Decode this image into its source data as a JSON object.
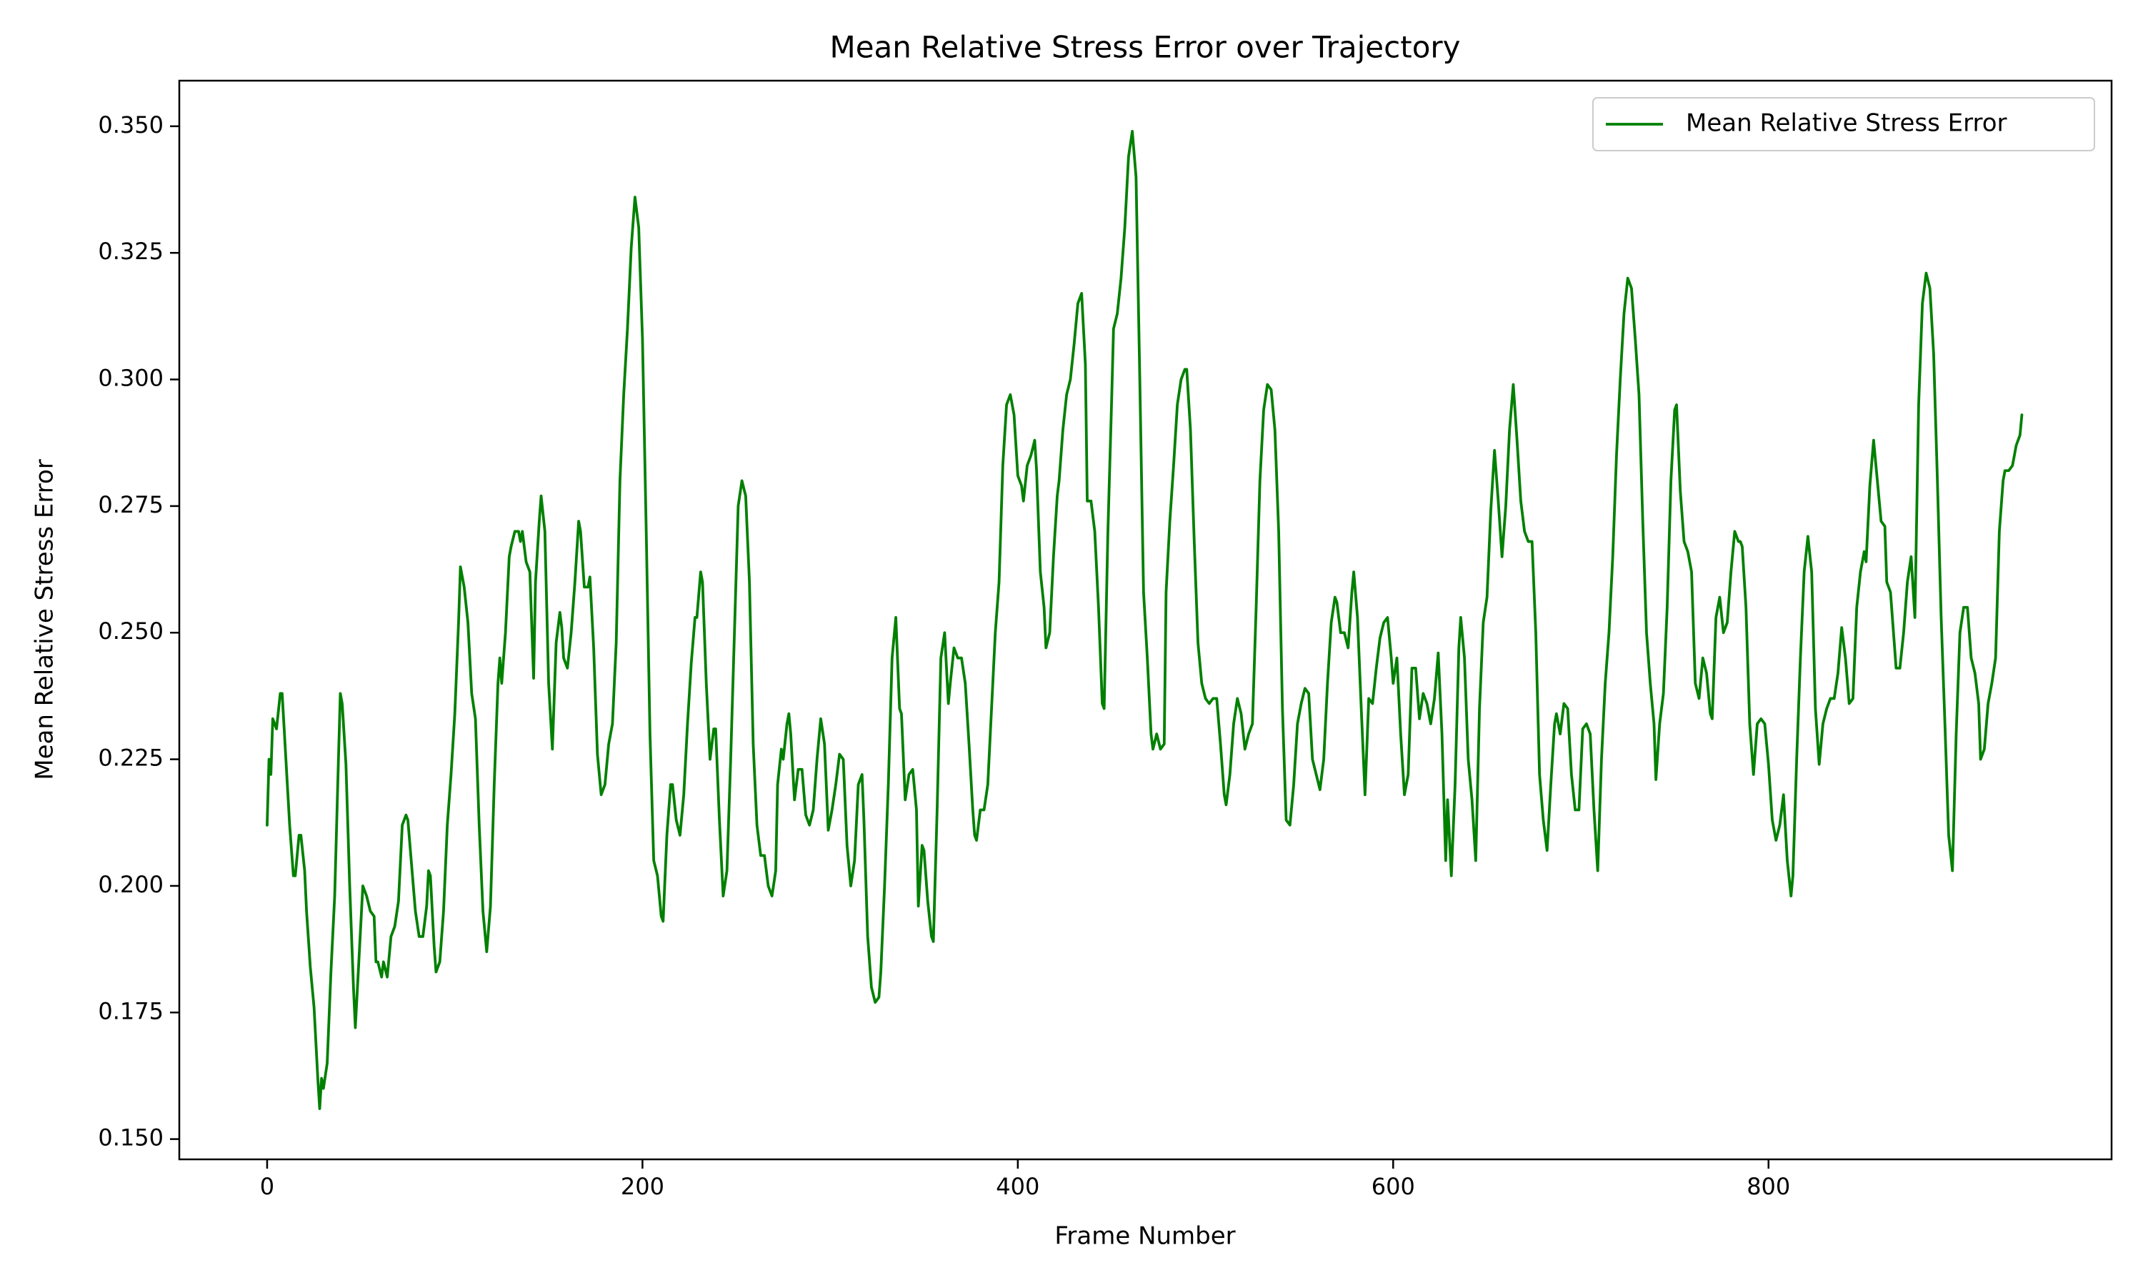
{
  "chart_data": {
    "type": "line",
    "title": "Mean Relative Stress Error over Trajectory",
    "x_label": "Frame Number",
    "y_label": "Mean Relative Stress Error",
    "xlim": [
      -46.8,
      982.8
    ],
    "ylim": [
      0.146,
      0.359
    ],
    "xticks": [
      0,
      200,
      400,
      600,
      800
    ],
    "yticks": [
      {
        "value": 0.15,
        "label": "0.150"
      },
      0.175,
      {
        "value": 0.2,
        "label": "0.200"
      },
      0.225,
      {
        "value": 0.25,
        "label": "0.250"
      },
      0.275,
      {
        "value": 0.3,
        "label": "0.300"
      },
      0.325,
      {
        "value": 0.35,
        "label": "0.350"
      }
    ],
    "grid": false,
    "legend": "upper right",
    "x": [
      0,
      1,
      2,
      3,
      5,
      7,
      8,
      10,
      12,
      14,
      15,
      17,
      18,
      20,
      21,
      23,
      25,
      27,
      28,
      29,
      30,
      32,
      34,
      36,
      38,
      39,
      40,
      42,
      44,
      46,
      47,
      49,
      51,
      53,
      55,
      57,
      58,
      59,
      61,
      62,
      64,
      66,
      68,
      70,
      72,
      74,
      75,
      77,
      79,
      81,
      83,
      85,
      86,
      87,
      89,
      90,
      92,
      94,
      96,
      98,
      100,
      102,
      103,
      105,
      107,
      109,
      111,
      113,
      115,
      117,
      119,
      121,
      123,
      124,
      125,
      127,
      129,
      130,
      132,
      134,
      135,
      136,
      138,
      140,
      142,
      143,
      145,
      146,
      148,
      150,
      152,
      154,
      156,
      157,
      158,
      160,
      162,
      164,
      166,
      167,
      169,
      171,
      172,
      174,
      176,
      178,
      180,
      182,
      184,
      186,
      188,
      190,
      192,
      194,
      196,
      198,
      200,
      202,
      204,
      206,
      208,
      210,
      211,
      213,
      215,
      216,
      218,
      220,
      222,
      224,
      226,
      228,
      229,
      231,
      232,
      234,
      236,
      238,
      239,
      241,
      243,
      245,
      247,
      249,
      251,
      253,
      255,
      257,
      259,
      261,
      263,
      265,
      267,
      269,
      271,
      272,
      274,
      275,
      277,
      278,
      279,
      281,
      283,
      285,
      287,
      289,
      291,
      293,
      295,
      297,
      299,
      301,
      303,
      305,
      307,
      309,
      311,
      313,
      315,
      317,
      318,
      320,
      322,
      324,
      326,
      327,
      329,
      331,
      333,
      335,
      337,
      338,
      340,
      342,
      344,
      346,
      347,
      349,
      350,
      352,
      354,
      355,
      357,
      359,
      361,
      363,
      364,
      366,
      368,
      370,
      372,
      374,
      376,
      377,
      378,
      380,
      382,
      384,
      386,
      388,
      390,
      392,
      394,
      396,
      398,
      400,
      402,
      403,
      405,
      407,
      409,
      410,
      412,
      414,
      415,
      417,
      419,
      421,
      422,
      424,
      426,
      428,
      430,
      432,
      434,
      436,
      437,
      439,
      441,
      443,
      445,
      446,
      448,
      450,
      451,
      453,
      455,
      457,
      459,
      461,
      463,
      465,
      467,
      469,
      471,
      472,
      474,
      476,
      478,
      479,
      481,
      483,
      485,
      487,
      489,
      490,
      492,
      494,
      496,
      498,
      500,
      502,
      504,
      506,
      508,
      510,
      511,
      513,
      515,
      517,
      519,
      521,
      523,
      525,
      527,
      529,
      531,
      533,
      535,
      537,
      539,
      541,
      543,
      545,
      547,
      549,
      551,
      553,
      555,
      557,
      559,
      561,
      563,
      565,
      567,
      569,
      570,
      572,
      574,
      576,
      578,
      579,
      581,
      583,
      585,
      587,
      589,
      591,
      593,
      595,
      597,
      599,
      600,
      602,
      604,
      606,
      608,
      610,
      612,
      614,
      616,
      618,
      620,
      622,
      624,
      626,
      628,
      629,
      631,
      633,
      635,
      636,
      638,
      640,
      642,
      644,
      646,
      648,
      650,
      652,
      654,
      656,
      658,
      660,
      662,
      664,
      666,
      668,
      670,
      672,
      674,
      676,
      678,
      680,
      682,
      684,
      686,
      687,
      689,
      691,
      693,
      695,
      697,
      699,
      701,
      703,
      705,
      707,
      709,
      711,
      713,
      715,
      717,
      719,
      721,
      723,
      725,
      727,
      729,
      731,
      733,
      735,
      737,
      739,
      740,
      742,
      744,
      746,
      748,
      750,
      751,
      753,
      755,
      757,
      759,
      761,
      763,
      765,
      767,
      769,
      770,
      772,
      774,
      776,
      778,
      780,
      782,
      784,
      785,
      786,
      788,
      790,
      792,
      794,
      796,
      798,
      800,
      802,
      804,
      806,
      808,
      810,
      812,
      813,
      815,
      817,
      819,
      821,
      823,
      825,
      827,
      829,
      831,
      833,
      835,
      837,
      839,
      841,
      843,
      845,
      847,
      849,
      851,
      852,
      854,
      856,
      858,
      860,
      862,
      863,
      865,
      867,
      868,
      870,
      872,
      874,
      876,
      878,
      880,
      882,
      884,
      886,
      888,
      890,
      892,
      894,
      896,
      898,
      900,
      902,
      904,
      906,
      908,
      910,
      912,
      913,
      915,
      917,
      919,
      921,
      923,
      925,
      926,
      928,
      930,
      932,
      934,
      935
    ],
    "series": [
      {
        "name": "Mean Relative Stress Error",
        "color": "#008000",
        "values": [
          0.212,
          0.225,
          0.222,
          0.233,
          0.231,
          0.238,
          0.238,
          0.225,
          0.212,
          0.202,
          0.202,
          0.21,
          0.21,
          0.203,
          0.195,
          0.184,
          0.176,
          0.162,
          0.156,
          0.162,
          0.16,
          0.165,
          0.183,
          0.198,
          0.225,
          0.238,
          0.236,
          0.224,
          0.2,
          0.18,
          0.172,
          0.186,
          0.2,
          0.198,
          0.195,
          0.194,
          0.185,
          0.185,
          0.182,
          0.185,
          0.182,
          0.19,
          0.192,
          0.197,
          0.212,
          0.214,
          0.213,
          0.204,
          0.195,
          0.19,
          0.19,
          0.196,
          0.203,
          0.202,
          0.188,
          0.183,
          0.185,
          0.195,
          0.212,
          0.222,
          0.234,
          0.252,
          0.263,
          0.259,
          0.252,
          0.238,
          0.233,
          0.212,
          0.195,
          0.187,
          0.196,
          0.22,
          0.24,
          0.245,
          0.24,
          0.25,
          0.265,
          0.267,
          0.27,
          0.27,
          0.268,
          0.27,
          0.264,
          0.262,
          0.241,
          0.26,
          0.272,
          0.277,
          0.27,
          0.24,
          0.227,
          0.248,
          0.254,
          0.251,
          0.245,
          0.243,
          0.25,
          0.26,
          0.272,
          0.27,
          0.259,
          0.259,
          0.261,
          0.247,
          0.226,
          0.218,
          0.22,
          0.228,
          0.232,
          0.248,
          0.28,
          0.297,
          0.31,
          0.326,
          0.336,
          0.33,
          0.308,
          0.27,
          0.23,
          0.205,
          0.202,
          0.194,
          0.193,
          0.21,
          0.22,
          0.22,
          0.213,
          0.21,
          0.218,
          0.232,
          0.244,
          0.253,
          0.253,
          0.262,
          0.26,
          0.24,
          0.225,
          0.231,
          0.231,
          0.213,
          0.198,
          0.203,
          0.225,
          0.25,
          0.275,
          0.28,
          0.277,
          0.26,
          0.228,
          0.212,
          0.206,
          0.206,
          0.2,
          0.198,
          0.203,
          0.22,
          0.227,
          0.225,
          0.232,
          0.234,
          0.23,
          0.217,
          0.223,
          0.223,
          0.214,
          0.212,
          0.215,
          0.225,
          0.233,
          0.228,
          0.211,
          0.215,
          0.22,
          0.226,
          0.225,
          0.208,
          0.2,
          0.205,
          0.22,
          0.222,
          0.213,
          0.19,
          0.18,
          0.177,
          0.178,
          0.183,
          0.2,
          0.22,
          0.245,
          0.253,
          0.235,
          0.234,
          0.217,
          0.222,
          0.223,
          0.215,
          0.196,
          0.208,
          0.207,
          0.197,
          0.19,
          0.189,
          0.215,
          0.245,
          0.25,
          0.236,
          0.24,
          0.247,
          0.245,
          0.245,
          0.24,
          0.228,
          0.215,
          0.21,
          0.209,
          0.215,
          0.215,
          0.22,
          0.235,
          0.25,
          0.26,
          0.283,
          0.295,
          0.297,
          0.293,
          0.281,
          0.279,
          0.276,
          0.283,
          0.285,
          0.288,
          0.282,
          0.262,
          0.255,
          0.247,
          0.25,
          0.265,
          0.277,
          0.28,
          0.29,
          0.297,
          0.3,
          0.307,
          0.315,
          0.317,
          0.303,
          0.276,
          0.276,
          0.27,
          0.255,
          0.236,
          0.235,
          0.27,
          0.296,
          0.31,
          0.313,
          0.32,
          0.33,
          0.344,
          0.349,
          0.34,
          0.3,
          0.258,
          0.245,
          0.23,
          0.227,
          0.23,
          0.227,
          0.228,
          0.258,
          0.272,
          0.283,
          0.295,
          0.3,
          0.302,
          0.302,
          0.29,
          0.268,
          0.248,
          0.24,
          0.237,
          0.236,
          0.237,
          0.237,
          0.228,
          0.218,
          0.216,
          0.222,
          0.232,
          0.237,
          0.234,
          0.227,
          0.23,
          0.232,
          0.255,
          0.28,
          0.294,
          0.299,
          0.298,
          0.29,
          0.27,
          0.235,
          0.213,
          0.212,
          0.22,
          0.232,
          0.236,
          0.239,
          0.238,
          0.225,
          0.222,
          0.219,
          0.225,
          0.24,
          0.252,
          0.257,
          0.256,
          0.25,
          0.25,
          0.247,
          0.258,
          0.262,
          0.253,
          0.235,
          0.218,
          0.237,
          0.236,
          0.243,
          0.249,
          0.252,
          0.253,
          0.245,
          0.24,
          0.245,
          0.23,
          0.218,
          0.222,
          0.243,
          0.243,
          0.233,
          0.238,
          0.236,
          0.232,
          0.237,
          0.246,
          0.23,
          0.205,
          0.217,
          0.202,
          0.22,
          0.247,
          0.253,
          0.245,
          0.225,
          0.217,
          0.205,
          0.235,
          0.252,
          0.257,
          0.274,
          0.286,
          0.276,
          0.265,
          0.275,
          0.29,
          0.299,
          0.288,
          0.276,
          0.27,
          0.268,
          0.268,
          0.25,
          0.222,
          0.213,
          0.207,
          0.22,
          0.232,
          0.234,
          0.23,
          0.236,
          0.235,
          0.222,
          0.215,
          0.215,
          0.231,
          0.232,
          0.23,
          0.215,
          0.203,
          0.225,
          0.24,
          0.25,
          0.265,
          0.285,
          0.3,
          0.313,
          0.32,
          0.318,
          0.308,
          0.297,
          0.272,
          0.25,
          0.24,
          0.232,
          0.221,
          0.232,
          0.238,
          0.255,
          0.28,
          0.294,
          0.295,
          0.278,
          0.268,
          0.266,
          0.262,
          0.24,
          0.237,
          0.245,
          0.242,
          0.234,
          0.233,
          0.253,
          0.257,
          0.25,
          0.252,
          0.262,
          0.27,
          0.268,
          0.268,
          0.267,
          0.255,
          0.232,
          0.222,
          0.232,
          0.233,
          0.232,
          0.224,
          0.213,
          0.209,
          0.212,
          0.218,
          0.205,
          0.198,
          0.202,
          0.225,
          0.245,
          0.262,
          0.269,
          0.262,
          0.235,
          0.224,
          0.232,
          0.235,
          0.237,
          0.237,
          0.242,
          0.251,
          0.245,
          0.236,
          0.237,
          0.255,
          0.262,
          0.266,
          0.264,
          0.279,
          0.288,
          0.28,
          0.272,
          0.271,
          0.26,
          0.258,
          0.248,
          0.243,
          0.243,
          0.25,
          0.26,
          0.265,
          0.253,
          0.295,
          0.315,
          0.321,
          0.318,
          0.305,
          0.28,
          0.253,
          0.232,
          0.21,
          0.203,
          0.23,
          0.25,
          0.255,
          0.255,
          0.245,
          0.242,
          0.236,
          0.225,
          0.227,
          0.236,
          0.24,
          0.245,
          0.27,
          0.28,
          0.282,
          0.282,
          0.283,
          0.287,
          0.289,
          0.293
        ]
      }
    ]
  }
}
